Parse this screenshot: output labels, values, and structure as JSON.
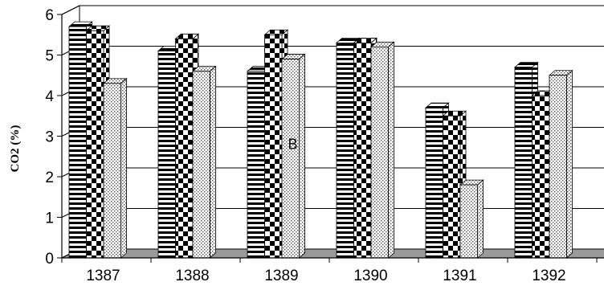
{
  "chart_data": {
    "type": "bar",
    "style": "3d-clustered-column",
    "ylabel": "CO2 (%)",
    "xlabel": "",
    "title": "",
    "ylim": [
      0,
      6
    ],
    "yticks": [
      "0",
      "1",
      "2",
      "3",
      "4",
      "5",
      "6"
    ],
    "categories": [
      "1387",
      "1388",
      "1389",
      "1390",
      "1391",
      "1392"
    ],
    "series": [
      {
        "pattern": "horizontal-stripes",
        "values": [
          5.7,
          5.1,
          4.6,
          5.3,
          3.7,
          4.7
        ]
      },
      {
        "pattern": "checkerboard",
        "values": [
          5.6,
          5.4,
          5.5,
          5.3,
          3.5,
          4.0
        ]
      },
      {
        "pattern": "dotted",
        "values": [
          4.3,
          4.6,
          4.9,
          5.2,
          1.8,
          4.5
        ]
      }
    ],
    "annotations": [
      {
        "text": "B",
        "category": "1389",
        "y": 2.8
      }
    ],
    "grid": true,
    "legend": "none",
    "colors": {
      "floor": "#9a9a9a",
      "wall": "#ffffff",
      "grid": "#000000",
      "bar_dark": "#000000",
      "bar_light": "#ffffff"
    }
  }
}
